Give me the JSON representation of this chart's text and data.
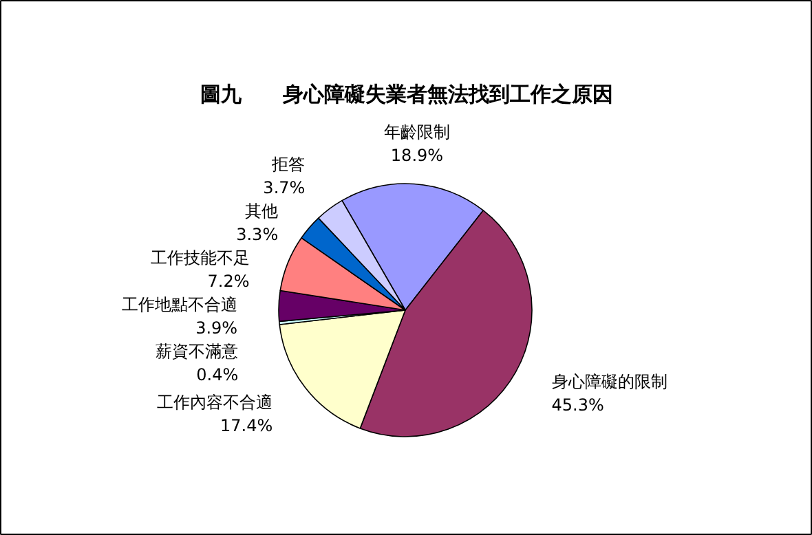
{
  "chart_data": {
    "type": "pie",
    "title": "圖九　　身心障礙失業者無法找到工作之原因",
    "categories": [
      "年齡限制",
      "身心障礙的限制",
      "工作內容不合適",
      "薪資不滿意",
      "工作地點不合適",
      "工作技能不足",
      "其他",
      "拒答"
    ],
    "values": [
      18.9,
      45.3,
      17.4,
      0.4,
      3.9,
      7.2,
      3.3,
      3.7
    ],
    "value_labels": [
      "18.9%",
      "45.3%",
      "17.4%",
      "0.4%",
      "3.9%",
      "7.2%",
      "3.3%",
      "3.7%"
    ],
    "colors": [
      "#9999ff",
      "#993366",
      "#ffffcc",
      "#ccffff",
      "#660066",
      "#ff8080",
      "#0066cc",
      "#ccccff"
    ]
  }
}
